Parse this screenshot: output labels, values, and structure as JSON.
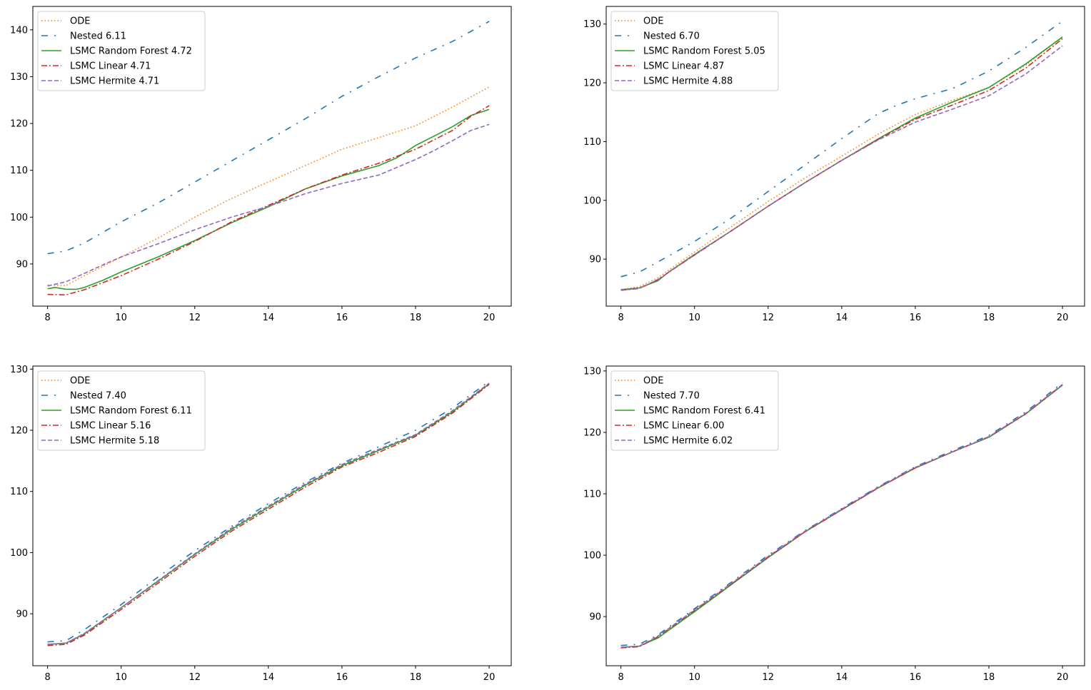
{
  "chart_data": [
    {
      "type": "line",
      "title": "",
      "xlabel": "",
      "ylabel": "",
      "xlim": [
        7.6,
        20.6
      ],
      "ylim": [
        81,
        145
      ],
      "xticks": [
        8,
        10,
        12,
        14,
        16,
        18,
        20
      ],
      "yticks": [
        90,
        100,
        110,
        120,
        130,
        140
      ],
      "legend_position": "top-left",
      "series": [
        {
          "key": "ode",
          "name": "ODE",
          "color": "#ff7f0e",
          "style": "dotted",
          "x": [
            8,
            8.5,
            9,
            10,
            11,
            12,
            13,
            14,
            15,
            16,
            17,
            18,
            19,
            20
          ],
          "y": [
            85.5,
            85.4,
            87.5,
            91.5,
            95.5,
            100,
            104,
            107.5,
            111,
            114.5,
            117,
            119.5,
            123.5,
            127.8
          ]
        },
        {
          "key": "nested",
          "name": "Nested 6.11",
          "color": "#1f77b4",
          "style": "dashdot-loose",
          "x": [
            8,
            8.5,
            9,
            10,
            11,
            12,
            13,
            14,
            15,
            16,
            17,
            18,
            19,
            20
          ],
          "y": [
            92.2,
            92.8,
            94.5,
            99,
            103,
            107.5,
            112,
            116.5,
            121,
            125.8,
            130,
            134,
            137.5,
            141.8
          ]
        },
        {
          "key": "rf",
          "name": "LSMC Random Forest 4.72",
          "color": "#2ca02c",
          "style": "solid",
          "x": [
            8,
            8.2,
            8.5,
            8.8,
            9,
            9.5,
            10,
            11,
            12,
            13,
            14,
            15,
            16,
            17,
            17.5,
            18,
            18.5,
            19,
            19.5,
            20
          ],
          "y": [
            84.7,
            85,
            84.6,
            84.6,
            85,
            86.5,
            88.3,
            91.5,
            95,
            98.8,
            102.2,
            106,
            108.8,
            111,
            112.7,
            115.3,
            117.3,
            119.3,
            121.7,
            123
          ]
        },
        {
          "key": "linear",
          "name": "LSMC Linear 4.71",
          "color": "#d62728",
          "style": "dashdot",
          "x": [
            8,
            8.5,
            9,
            10,
            11,
            12,
            13,
            14,
            15,
            16,
            17,
            17.5,
            18,
            18.5,
            19,
            19.5,
            20
          ],
          "y": [
            83.5,
            83.4,
            84.5,
            87.5,
            91,
            94.8,
            99,
            102.5,
            106,
            109,
            111.5,
            113,
            114.5,
            116.5,
            118.5,
            121.5,
            123.8
          ]
        },
        {
          "key": "hermite",
          "name": "LSMC Hermite 4.71",
          "color": "#9467bd",
          "style": "dashed",
          "x": [
            8,
            8.5,
            9,
            9.5,
            10,
            11,
            12,
            13,
            14,
            15,
            16,
            17,
            18,
            18.5,
            19,
            19.5,
            20
          ],
          "y": [
            85.3,
            86.2,
            88,
            89.8,
            91.5,
            94.3,
            97.3,
            100,
            102.3,
            105,
            107.2,
            109,
            112.3,
            114.2,
            116.3,
            118.5,
            119.8
          ]
        }
      ]
    },
    {
      "type": "line",
      "title": "",
      "xlabel": "",
      "ylabel": "",
      "xlim": [
        7.6,
        20.6
      ],
      "ylim": [
        82,
        133
      ],
      "xticks": [
        8,
        10,
        12,
        14,
        16,
        18,
        20
      ],
      "yticks": [
        90,
        100,
        110,
        120,
        130
      ],
      "legend_position": "top-left",
      "series": [
        {
          "key": "ode",
          "name": "ODE",
          "color": "#ff7f0e",
          "style": "dotted",
          "x": [
            8,
            8.5,
            9,
            10,
            11,
            12,
            13,
            14,
            15,
            16,
            17,
            18,
            19,
            20
          ],
          "y": [
            84.8,
            85.3,
            86.8,
            91.2,
            95.5,
            99.8,
            103.8,
            107.5,
            111.3,
            114.6,
            117,
            119.2,
            123,
            127.8
          ]
        },
        {
          "key": "nested",
          "name": "Nested 6.70",
          "color": "#1f77b4",
          "style": "dashdot-loose",
          "x": [
            8,
            8.5,
            9,
            10,
            11,
            12,
            13,
            14,
            15,
            15.5,
            16,
            17,
            18,
            19,
            20
          ],
          "y": [
            87,
            87.8,
            89.5,
            93,
            97,
            101.5,
            106,
            110.5,
            114.8,
            116.2,
            117.3,
            119,
            122,
            126,
            130.5
          ]
        },
        {
          "key": "rf",
          "name": "LSMC Random Forest 5.05",
          "color": "#2ca02c",
          "style": "solid",
          "x": [
            8,
            8.5,
            9,
            9.3,
            10,
            11,
            12,
            13,
            14,
            15,
            16,
            17,
            18,
            19,
            20
          ],
          "y": [
            84.8,
            85.1,
            86.3,
            87.8,
            90.8,
            94.8,
            99,
            103,
            106.8,
            110.5,
            114,
            116.7,
            119.2,
            123.2,
            127.8
          ]
        },
        {
          "key": "linear",
          "name": "LSMC Linear 4.87",
          "color": "#d62728",
          "style": "dashdot",
          "x": [
            8,
            8.5,
            9,
            10,
            11,
            12,
            13,
            14,
            15,
            16,
            17,
            18,
            19,
            20
          ],
          "y": [
            84.7,
            85,
            86.5,
            90.7,
            94.8,
            99,
            103,
            106.8,
            110.4,
            113.8,
            116.2,
            118.7,
            122.5,
            127.5
          ]
        },
        {
          "key": "hermite",
          "name": "LSMC Hermite 4.88",
          "color": "#9467bd",
          "style": "dashed",
          "x": [
            8,
            8.5,
            9,
            10,
            11,
            12,
            13,
            14,
            15,
            16,
            17,
            18,
            19,
            20
          ],
          "y": [
            84.7,
            85,
            86.5,
            90.7,
            94.8,
            99,
            103,
            106.8,
            110.3,
            113.3,
            115.5,
            117.8,
            121.5,
            126.3
          ]
        }
      ]
    },
    {
      "type": "line",
      "title": "",
      "xlabel": "",
      "ylabel": "",
      "xlim": [
        7.6,
        20.6
      ],
      "ylim": [
        81.5,
        130.5
      ],
      "xticks": [
        8,
        10,
        12,
        14,
        16,
        18,
        20
      ],
      "yticks": [
        90,
        100,
        110,
        120,
        130
      ],
      "legend_position": "top-left",
      "series": [
        {
          "key": "ode",
          "name": "ODE",
          "color": "#ff7f0e",
          "style": "dotted",
          "x": [
            8,
            8.5,
            9,
            10,
            11,
            12,
            13,
            14,
            15,
            16,
            17,
            18,
            19,
            20
          ],
          "y": [
            85,
            85.2,
            86.7,
            91,
            95.3,
            99.7,
            103.8,
            107.4,
            111,
            114.3,
            116.8,
            119.2,
            123,
            127.6
          ]
        },
        {
          "key": "nested",
          "name": "Nested 7.40",
          "color": "#1f77b4",
          "style": "dashdot-loose",
          "x": [
            8,
            8.5,
            9,
            10,
            11,
            12,
            13,
            14,
            15,
            16,
            17,
            18,
            19,
            20
          ],
          "y": [
            85.4,
            85.6,
            87.4,
            91.5,
            96,
            100.3,
            104.3,
            108,
            111.5,
            114.6,
            117.3,
            120,
            123.6,
            128
          ]
        },
        {
          "key": "rf",
          "name": "LSMC Random Forest 6.11",
          "color": "#2ca02c",
          "style": "solid",
          "x": [
            8,
            8.5,
            9,
            10,
            11,
            12,
            13,
            14,
            15,
            16,
            17,
            18,
            19,
            20
          ],
          "y": [
            85,
            85.2,
            86.7,
            91,
            95.3,
            99.7,
            103.8,
            107.4,
            111,
            114.2,
            116.7,
            119.2,
            123,
            127.6
          ]
        },
        {
          "key": "linear",
          "name": "LSMC Linear 5.16",
          "color": "#d62728",
          "style": "dashdot",
          "x": [
            8,
            8.5,
            9,
            10,
            11,
            12,
            13,
            14,
            15,
            16,
            17,
            18,
            19,
            20
          ],
          "y": [
            84.8,
            85,
            86.5,
            90.7,
            95,
            99.4,
            103.5,
            107.1,
            110.7,
            114,
            116.4,
            119,
            122.8,
            127.5
          ]
        },
        {
          "key": "hermite",
          "name": "LSMC Hermite 5.18",
          "color": "#9467bd",
          "style": "dashed",
          "x": [
            8,
            8.5,
            9,
            10,
            11,
            12,
            13,
            14,
            15,
            16,
            17,
            18,
            19,
            20
          ],
          "y": [
            85,
            85.2,
            86.8,
            91,
            95.4,
            99.8,
            104,
            107.6,
            111.2,
            114.4,
            116.9,
            119.3,
            123.2,
            127.7
          ]
        }
      ]
    },
    {
      "type": "line",
      "title": "",
      "xlabel": "",
      "ylabel": "",
      "xlim": [
        7.6,
        20.6
      ],
      "ylim": [
        82,
        130.8
      ],
      "xticks": [
        8,
        10,
        12,
        14,
        16,
        18,
        20
      ],
      "yticks": [
        90,
        100,
        110,
        120,
        130
      ],
      "legend_position": "top-left",
      "series": [
        {
          "key": "ode",
          "name": "ODE",
          "color": "#ff7f0e",
          "style": "dotted",
          "x": [
            8,
            8.5,
            9,
            10,
            11,
            12,
            13,
            14,
            15,
            16,
            17,
            18,
            19,
            20
          ],
          "y": [
            85,
            85.2,
            86.7,
            91,
            95.3,
            99.7,
            103.8,
            107.4,
            111,
            114.2,
            116.8,
            119.2,
            123,
            127.7
          ]
        },
        {
          "key": "nested",
          "name": "Nested 7.70",
          "color": "#1f77b4",
          "style": "dashdot-loose",
          "x": [
            8,
            8.5,
            9,
            10,
            11,
            12,
            13,
            14,
            15,
            16,
            17,
            18,
            19,
            20
          ],
          "y": [
            85.3,
            85.5,
            87,
            91.3,
            95.6,
            100,
            104,
            107.6,
            111.2,
            114.4,
            117,
            119.5,
            123.3,
            128.1
          ]
        },
        {
          "key": "rf",
          "name": "LSMC Random Forest 6.41",
          "color": "#2ca02c",
          "style": "solid",
          "x": [
            8,
            8.5,
            9,
            10,
            11,
            12,
            13,
            14,
            15,
            16,
            17,
            18,
            19,
            20
          ],
          "y": [
            85,
            85.2,
            86.5,
            90.8,
            95.2,
            99.6,
            103.8,
            107.4,
            111,
            114.2,
            116.8,
            119.2,
            123,
            127.7
          ]
        },
        {
          "key": "linear",
          "name": "LSMC Linear 6.00",
          "color": "#d62728",
          "style": "dashdot",
          "x": [
            8,
            8.5,
            9,
            10,
            11,
            12,
            13,
            14,
            15,
            16,
            17,
            18,
            19,
            20
          ],
          "y": [
            84.9,
            85.1,
            86.7,
            91,
            95.3,
            99.7,
            103.8,
            107.4,
            111,
            114.2,
            116.8,
            119.3,
            123,
            127.8
          ]
        },
        {
          "key": "hermite",
          "name": "LSMC Hermite 6.02",
          "color": "#9467bd",
          "style": "dashed",
          "x": [
            8,
            8.5,
            9,
            10,
            11,
            12,
            13,
            14,
            15,
            16,
            17,
            18,
            19,
            20
          ],
          "y": [
            85,
            85.2,
            86.8,
            91.1,
            95.4,
            99.8,
            103.9,
            107.5,
            111.1,
            114.3,
            116.8,
            119.3,
            123.1,
            127.8
          ]
        }
      ]
    }
  ]
}
